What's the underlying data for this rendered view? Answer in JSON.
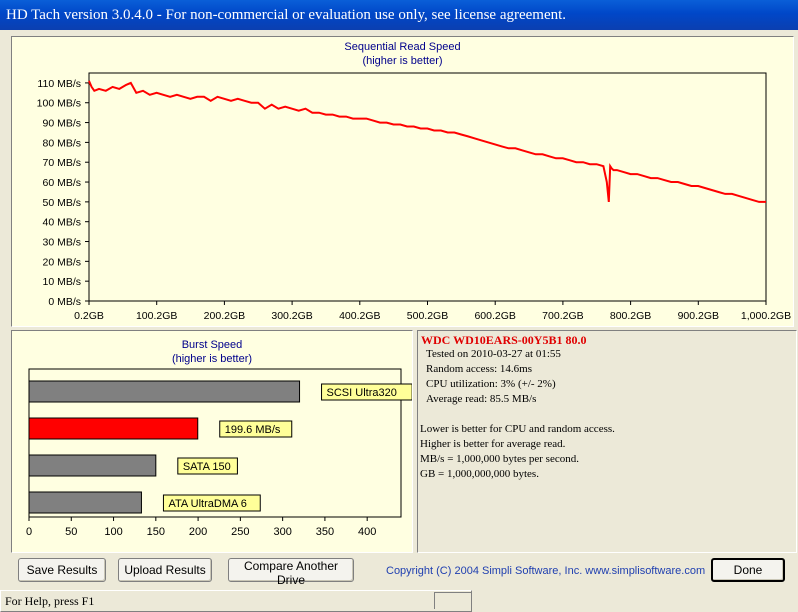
{
  "window": {
    "title": "HD Tach version 3.0.4.0  - For non-commercial or evaluation use only, see license agreement."
  },
  "colors": {
    "line": "#ff0000",
    "bar": "#808080",
    "highlight_bar": "#ff0000",
    "chart_bg": "#ffffe1",
    "label_bg": "#ffff99"
  },
  "chart_data": [
    {
      "type": "line",
      "title": "Sequential Read Speed",
      "subtitle": "(higher is better)",
      "x_ticks": [
        "0.2GB",
        "100.2GB",
        "200.2GB",
        "300.2GB",
        "400.2GB",
        "500.2GB",
        "600.2GB",
        "700.2GB",
        "800.2GB",
        "900.2GB",
        "1,000.2GB"
      ],
      "y_ticks": [
        "0 MB/s",
        "10 MB/s",
        "20 MB/s",
        "30 MB/s",
        "40 MB/s",
        "50 MB/s",
        "60 MB/s",
        "70 MB/s",
        "80 MB/s",
        "90 MB/s",
        "100 MB/s",
        "110 MB/s"
      ],
      "xlim": [
        0.2,
        1000.2
      ],
      "ylim": [
        0,
        115
      ],
      "grid": false,
      "series": [
        {
          "x": [
            0.2,
            4,
            8,
            15,
            25,
            35,
            45,
            55,
            62,
            70,
            80,
            90,
            100,
            110,
            120,
            130,
            140,
            150,
            160,
            170,
            180,
            190,
            200,
            210,
            220,
            230,
            240,
            250,
            260,
            270,
            280,
            290,
            300,
            310,
            320,
            330,
            340,
            350,
            360,
            370,
            380,
            390,
            400,
            410,
            420,
            430,
            440,
            450,
            460,
            470,
            480,
            490,
            500,
            510,
            520,
            530,
            540,
            550,
            560,
            570,
            580,
            590,
            600,
            610,
            620,
            630,
            640,
            650,
            660,
            670,
            680,
            690,
            700,
            710,
            720,
            730,
            740,
            750,
            760,
            765,
            768,
            770,
            772,
            775,
            780,
            790,
            800,
            810,
            820,
            830,
            840,
            850,
            860,
            870,
            880,
            890,
            900,
            910,
            920,
            930,
            940,
            950,
            960,
            970,
            980,
            990,
            1000.2
          ],
          "y": [
            111,
            108,
            106,
            107,
            106,
            108,
            107,
            109,
            110,
            105,
            106,
            104,
            105,
            104,
            103,
            104,
            103,
            102,
            103,
            103,
            101,
            103,
            102,
            101,
            102,
            101,
            100,
            100,
            97,
            99,
            97,
            98,
            97,
            96,
            97,
            95,
            95,
            94,
            94,
            93,
            93,
            92,
            92,
            92,
            91,
            90,
            90,
            89,
            89,
            88,
            88,
            87,
            87,
            86,
            86,
            85,
            85,
            84,
            83,
            82,
            81,
            80,
            79,
            78,
            77,
            77,
            76,
            75,
            74,
            74,
            73,
            72,
            72,
            71,
            70,
            70,
            69,
            69,
            68,
            60,
            50,
            68,
            67,
            66,
            66,
            65,
            64,
            64,
            63,
            62,
            62,
            61,
            60,
            60,
            59,
            58,
            58,
            57,
            56,
            55,
            54,
            54,
            53,
            52,
            51,
            50,
            50
          ]
        }
      ]
    },
    {
      "type": "bar",
      "title": "Burst Speed",
      "subtitle": "(higher is better)",
      "orientation": "horizontal",
      "x_ticks": [
        "0",
        "50",
        "100",
        "150",
        "200",
        "250",
        "300",
        "350",
        "400"
      ],
      "xlim": [
        0,
        440
      ],
      "grid": false,
      "bars": [
        {
          "label": "SCSI Ultra320",
          "value": 320,
          "highlight": false
        },
        {
          "label": "199.6 MB/s",
          "value": 199.6,
          "highlight": true
        },
        {
          "label": "SATA 150",
          "value": 150,
          "highlight": false
        },
        {
          "label": "ATA UltraDMA 6",
          "value": 133,
          "highlight": false
        }
      ]
    }
  ],
  "info": {
    "drive": "WDC  WD10EARS-00Y5B1 80.0",
    "tested_on": "Tested on 2010-03-27 at 01:55",
    "random_access": "Random access: 14.6ms",
    "cpu": "CPU utilization: 3% (+/- 2%)",
    "average_read": "Average read: 85.5 MB/s",
    "notes": [
      "Lower is better for CPU and random access.",
      "Higher is better for average read.",
      "MB/s = 1,000,000 bytes per second.",
      "GB = 1,000,000,000 bytes."
    ]
  },
  "buttons": {
    "save": "Save Results",
    "upload": "Upload Results",
    "compare": "Compare Another Drive",
    "done": "Done"
  },
  "copyright": "Copyright (C) 2004 Simpli Software, Inc. www.simplisoftware.com",
  "status": {
    "text": "For Help, press F1"
  }
}
